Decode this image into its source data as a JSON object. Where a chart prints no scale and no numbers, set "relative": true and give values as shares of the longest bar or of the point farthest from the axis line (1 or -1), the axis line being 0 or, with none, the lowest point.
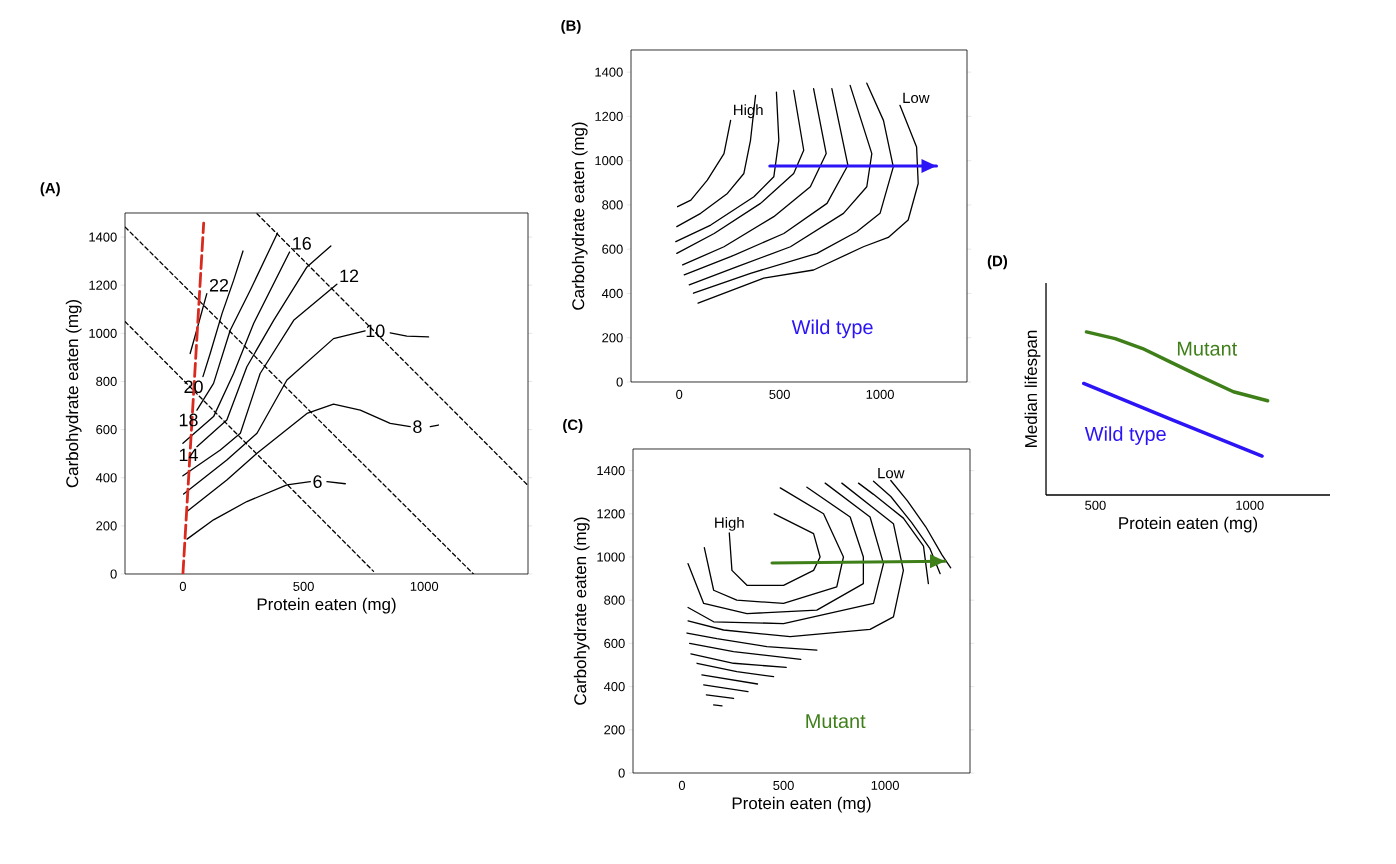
{
  "chart_data": [
    {
      "type": "line",
      "title": "(A)",
      "xlabel": "Protein eaten (mg)",
      "ylabel": "Carbohydrate eaten (mg)",
      "xlim": [
        -240,
        1430
      ],
      "ylim": [
        0,
        1500
      ],
      "xticks": [
        0,
        500,
        1000
      ],
      "yticks": [
        0,
        200,
        400,
        600,
        800,
        1000,
        1200,
        1400
      ],
      "series": [
        {
          "color": "#000000",
          "line_style": "dashed",
          "x": [
            -239,
            1204
          ],
          "values": [
            1441,
            0
          ]
        },
        {
          "color": "#000000",
          "line_style": "dashed",
          "x": [
            -239,
            790
          ],
          "values": [
            1048,
            11
          ]
        },
        {
          "color": "#000000",
          "line_style": "dashed",
          "x": [
            307,
            1428
          ],
          "values": [
            1497,
            370
          ]
        },
        {
          "color": "#000000",
          "x": [
            30,
            65,
            99
          ],
          "values": [
            916,
            1041,
            1165
          ]
        },
        {
          "color": "#000000",
          "x": [
            83,
            113,
            162,
            210,
            249
          ],
          "values": [
            820,
            916,
            1082,
            1220,
            1342
          ]
        },
        {
          "color": "#000000",
          "x": [
            58,
            127,
            196,
            279,
            392
          ],
          "values": [
            681,
            792,
            1013,
            1179,
            1417
          ]
        },
        {
          "color": "#000000",
          "x": [
            0,
            127,
            210,
            293,
            442
          ],
          "values": [
            543,
            654,
            833,
            1041,
            1338
          ]
        },
        {
          "color": "#000000",
          "x": [
            58,
            182,
            265,
            376,
            514,
            613
          ],
          "values": [
            529,
            640,
            861,
            1054,
            1276,
            1363
          ]
        },
        {
          "color": "#000000",
          "x": [
            0,
            155,
            238,
            320,
            459,
            638
          ],
          "values": [
            408,
            515,
            585,
            833,
            1054,
            1204
          ]
        },
        {
          "color": "#000000",
          "x": [
            3,
            182,
            307,
            431,
            624,
            755,
            797,
            859,
            928,
            1018
          ],
          "values": [
            332,
            474,
            585,
            806,
            978,
            1010,
            null,
            1002,
            988,
            985
          ]
        },
        {
          "color": "#000000",
          "x": [
            17,
            182,
            307,
            514,
            624,
            735,
            859,
            942,
            977,
            1025,
            1059
          ],
          "values": [
            260,
            391,
            502,
            667,
            706,
            681,
            626,
            612,
            null,
            612,
            619
          ]
        },
        {
          "color": "#000000",
          "x": [
            17,
            127,
            265,
            431,
            528,
            548,
            597,
            673
          ],
          "values": [
            145,
            225,
            301,
            370,
            384,
            null,
            384,
            375
          ]
        },
        {
          "color": "#d92a1f",
          "line_style": "dashed",
          "x": [
            0,
            86
          ],
          "values": [
            0,
            1458
          ]
        }
      ],
      "annotations": [
        {
          "text": "22",
          "x": 99,
          "y": 1165
        },
        {
          "text": "20",
          "x": 44,
          "y": 778
        },
        {
          "text": "18",
          "x": 23,
          "y": 640
        },
        {
          "text": "16",
          "x": 442,
          "y": 1338
        },
        {
          "text": "14",
          "x": 23,
          "y": 495
        },
        {
          "text": "12",
          "x": 638,
          "y": 1204
        },
        {
          "text": "10",
          "x": 797,
          "y": 1010
        },
        {
          "text": "8",
          "x": 942,
          "y": 612
        },
        {
          "text": "6",
          "x": 528,
          "y": 384
        }
      ]
    },
    {
      "type": "line",
      "title": "(B)",
      "ylabel": "Carbohydrate eaten (mg)",
      "xlim": [
        -240,
        1433
      ],
      "ylim": [
        0,
        1500
      ],
      "xticks": [
        0,
        500,
        1000
      ],
      "yticks": [
        0,
        200,
        400,
        600,
        800,
        1000,
        1200,
        1400
      ],
      "series": [
        {
          "color": "#000000",
          "x": [
            -8,
            58,
            140,
            223,
            256
          ],
          "values": [
            792,
            822,
            912,
            1032,
            1182
          ]
        },
        {
          "color": "#000000",
          "x": [
            -12,
            107,
            240,
            322,
            355,
            380
          ],
          "values": [
            702,
            762,
            852,
            942,
            1092,
            1295
          ]
        },
        {
          "color": "#000000",
          "x": [
            -17,
            157,
            372,
            471,
            496,
            484
          ],
          "values": [
            634,
            709,
            837,
            927,
            1092,
            1310
          ]
        },
        {
          "color": "#000000",
          "x": [
            -12,
            174,
            405,
            570,
            620,
            570
          ],
          "values": [
            581,
            671,
            807,
            942,
            1047,
            1317
          ]
        },
        {
          "color": "#000000",
          "x": [
            17,
            223,
            471,
            653,
            732,
            669
          ],
          "values": [
            529,
            611,
            747,
            882,
            1032,
            1325
          ]
        },
        {
          "color": "#000000",
          "x": [
            25,
            256,
            521,
            736,
            840,
            760
          ],
          "values": [
            484,
            566,
            671,
            807,
            979,
            1325
          ]
        },
        {
          "color": "#000000",
          "x": [
            50,
            289,
            554,
            818,
            934,
            959,
            851
          ],
          "values": [
            439,
            521,
            611,
            762,
            882,
            1032,
            1340
          ]
        },
        {
          "color": "#000000",
          "x": [
            71,
            355,
            686,
            884,
            1000,
            1066,
            1017,
            934
          ],
          "values": [
            401,
            491,
            581,
            679,
            762,
            972,
            1182,
            1350
          ]
        },
        {
          "color": "#000000",
          "x": [
            94,
            421,
            669,
            917,
            1041,
            1140,
            1190,
            1182,
            1099
          ],
          "values": [
            356,
            469,
            506,
            611,
            653,
            732,
            897,
            1062,
            1250
          ]
        },
        {
          "name": "Wild type",
          "color": "#2b14f5",
          "line_style": "solid",
          "x": [
            451,
            1281
          ],
          "values": [
            976,
            976
          ]
        }
      ],
      "annotations": [
        {
          "text": "High",
          "x": 256,
          "y": 1182
        },
        {
          "text": "Low",
          "x": 1099,
          "y": 1250
        }
      ]
    },
    {
      "type": "line",
      "title": "(C)",
      "xlabel": "Protein eaten (mg)",
      "ylabel": "Carbohydrate eaten (mg)",
      "xlim": [
        -241,
        1418
      ],
      "ylim": [
        0,
        1500
      ],
      "xticks": [
        0,
        500,
        1000
      ],
      "yticks": [
        0,
        200,
        400,
        600,
        800,
        1000,
        1200,
        1400
      ],
      "series": [
        {
          "color": "#000000",
          "x": [
            233,
            246,
            320,
            500,
            648,
            680,
            648,
            454
          ],
          "values": [
            1111,
            938,
            869,
            869,
            938,
            1000,
            1108,
            1200
          ]
        },
        {
          "color": "#000000",
          "x": [
            110,
            156,
            270,
            500,
            762,
            795,
            697,
            484
          ],
          "values": [
            1043,
            846,
            800,
            785,
            862,
            1000,
            1200,
            1320
          ]
        },
        {
          "color": "#000000",
          "x": [
            30,
            107,
            320,
            664,
            893,
            893,
            828,
            615
          ],
          "values": [
            969,
            785,
            738,
            754,
            877,
            1000,
            1185,
            1323
          ]
        },
        {
          "color": "#000000",
          "x": [
            30,
            156,
            500,
            943,
            992,
            926,
            705
          ],
          "values": [
            766,
            700,
            692,
            785,
            969,
            1185,
            1342
          ]
        },
        {
          "color": "#000000",
          "x": [
            30,
            205,
            533,
            926,
            1041,
            1090,
            1041,
            787
          ],
          "values": [
            704,
            662,
            631,
            665,
            723,
            938,
            1154,
            1342
          ]
        },
        {
          "color": "#000000",
          "x": [
            869,
            943,
            1090,
            1189,
            1213
          ],
          "values": [
            1342,
            1290,
            1180,
            1050,
            877
          ]
        },
        {
          "color": "#000000",
          "x": [
            943,
            1028,
            1130,
            1220,
            1271
          ],
          "values": [
            1351,
            1280,
            1160,
            1040,
            923
          ]
        },
        {
          "color": "#000000",
          "x": [
            1028,
            1110,
            1200,
            1280,
            1323
          ],
          "values": [
            1354,
            1260,
            1140,
            1010,
            950
          ]
        },
        {
          "color": "#000000",
          "x": [
            25,
            172,
            418,
            664
          ],
          "values": [
            648,
            622,
            585,
            569
          ]
        },
        {
          "color": "#000000",
          "x": [
            38,
            254,
            585
          ],
          "values": [
            600,
            562,
            526
          ]
        },
        {
          "color": "#000000",
          "x": [
            44,
            254,
            513
          ],
          "values": [
            551,
            508,
            489
          ]
        },
        {
          "color": "#000000",
          "x": [
            74,
            270,
            451
          ],
          "values": [
            508,
            469,
            446
          ]
        },
        {
          "color": "#000000",
          "x": [
            98,
            372
          ],
          "values": [
            454,
            412
          ]
        },
        {
          "color": "#000000",
          "x": [
            107,
            325
          ],
          "values": [
            408,
            377
          ]
        },
        {
          "color": "#000000",
          "x": [
            120,
            254
          ],
          "values": [
            362,
            345
          ]
        },
        {
          "color": "#000000",
          "x": [
            156,
            197
          ],
          "values": [
            315,
            311
          ]
        },
        {
          "name": "Mutant",
          "color": "#3f7f1a",
          "line_style": "solid",
          "x": [
            443,
            1295
          ],
          "values": [
            972,
            980
          ]
        }
      ],
      "annotations": [
        {
          "text": "High",
          "x": 233,
          "y": 1111
        },
        {
          "text": "Low",
          "x": 1028,
          "y": 1354
        }
      ]
    },
    {
      "type": "line",
      "title": "(D)",
      "xlabel": "Protein eaten (mg)",
      "ylabel": "Median lifespan",
      "relative": true,
      "tick_labels": "x",
      "xlim": [
        340,
        1260
      ],
      "xticks": [
        500,
        1000
      ],
      "series": [
        {
          "name": "Mutant",
          "color": "#3f7f1a",
          "x": [
            471,
            564,
            653,
            742,
            831,
            947,
            1058
          ],
          "values": [
            1.0,
            0.959,
            0.898,
            0.816,
            0.735,
            0.633,
            0.578
          ]
        },
        {
          "name": "Wild type",
          "color": "#2b14f5",
          "x": [
            462,
            751,
            1040
          ],
          "values": [
            0.684,
            0.459,
            0.239
          ]
        }
      ]
    }
  ]
}
